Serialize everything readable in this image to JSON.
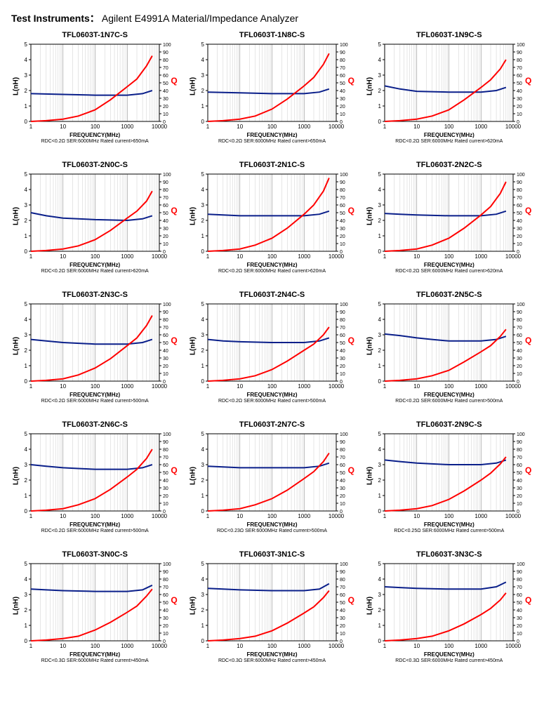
{
  "header": {
    "label": "Test Instruments：",
    "value": "Agilent E4991A Material/Impedance Analyzer"
  },
  "global": {
    "xlabel": "FREQUENCY(MHz)",
    "ylabel_left": "L(nH)",
    "ylabel_right": "Q",
    "x_scale": "log",
    "x_decades": [
      1,
      10,
      100,
      1000,
      10000
    ],
    "y_left": {
      "min": 0,
      "max": 5,
      "step": 1
    },
    "y_right": {
      "min": 0,
      "max": 100,
      "step": 10
    },
    "colors": {
      "background": "#ffffff",
      "axis": "#000000",
      "inductance_line": "#0a1f8a",
      "q_line": "#ff0000",
      "grid_minor": "#cccccc",
      "grid_major": "#888888",
      "q_marker": "#ff0000"
    },
    "line_width_L": 2.0,
    "line_width_Q": 2.0,
    "title_fontsize": 11,
    "label_fontsize": 8,
    "footnote_fontsize": 7
  },
  "panels": [
    {
      "title": "TFL0603T-1N7C-S",
      "footnote": "RDC<0.2Ω SER:6000MHz Rated current>650mA",
      "L_curve": [
        [
          1,
          1.8
        ],
        [
          10,
          1.75
        ],
        [
          100,
          1.7
        ],
        [
          1000,
          1.7
        ],
        [
          3000,
          1.8
        ],
        [
          6000,
          2.0
        ]
      ],
      "Q_curve": [
        [
          1,
          0
        ],
        [
          3,
          1
        ],
        [
          10,
          3
        ],
        [
          30,
          7
        ],
        [
          100,
          15
        ],
        [
          300,
          28
        ],
        [
          1000,
          45
        ],
        [
          2000,
          55
        ],
        [
          4000,
          72
        ],
        [
          6000,
          85
        ]
      ]
    },
    {
      "title": "TFL0603T-1N8C-S",
      "footnote": "RDC<0.2Ω SER:6000MHz Rated current>650mA",
      "L_curve": [
        [
          1,
          1.9
        ],
        [
          10,
          1.85
        ],
        [
          100,
          1.8
        ],
        [
          1000,
          1.8
        ],
        [
          3000,
          1.9
        ],
        [
          6000,
          2.1
        ]
      ],
      "Q_curve": [
        [
          1,
          0
        ],
        [
          3,
          1
        ],
        [
          10,
          3
        ],
        [
          30,
          7
        ],
        [
          100,
          16
        ],
        [
          300,
          29
        ],
        [
          1000,
          46
        ],
        [
          2000,
          57
        ],
        [
          4000,
          74
        ],
        [
          6000,
          88
        ]
      ]
    },
    {
      "title": "TFL0603T-1N9C-S",
      "footnote": "RDC<0.2Ω SER:6000MHz Rated current>620mA",
      "L_curve": [
        [
          1,
          2.3
        ],
        [
          3,
          2.1
        ],
        [
          10,
          1.95
        ],
        [
          100,
          1.9
        ],
        [
          1000,
          1.9
        ],
        [
          3000,
          2.0
        ],
        [
          6000,
          2.2
        ]
      ],
      "Q_curve": [
        [
          1,
          0
        ],
        [
          3,
          1
        ],
        [
          10,
          3
        ],
        [
          30,
          7
        ],
        [
          100,
          15
        ],
        [
          300,
          28
        ],
        [
          1000,
          44
        ],
        [
          2000,
          54
        ],
        [
          4000,
          68
        ],
        [
          6000,
          80
        ]
      ]
    },
    {
      "title": "TFL0603T-2N0C-S",
      "footnote": "RDC<0.2Ω SER:6000MHz Rated current>620mA",
      "L_curve": [
        [
          1,
          2.5
        ],
        [
          3,
          2.3
        ],
        [
          10,
          2.15
        ],
        [
          100,
          2.05
        ],
        [
          1000,
          2.0
        ],
        [
          3000,
          2.1
        ],
        [
          6000,
          2.3
        ]
      ],
      "Q_curve": [
        [
          1,
          0
        ],
        [
          3,
          1
        ],
        [
          10,
          3
        ],
        [
          30,
          7
        ],
        [
          100,
          15
        ],
        [
          300,
          27
        ],
        [
          1000,
          43
        ],
        [
          2000,
          52
        ],
        [
          4000,
          65
        ],
        [
          6000,
          78
        ]
      ]
    },
    {
      "title": "TFL0603T-2N1C-S",
      "footnote": "RDC<0.2Ω SER:6000MHz Rated current>620mA",
      "L_curve": [
        [
          1,
          2.4
        ],
        [
          3,
          2.35
        ],
        [
          10,
          2.3
        ],
        [
          100,
          2.3
        ],
        [
          1000,
          2.3
        ],
        [
          3000,
          2.4
        ],
        [
          6000,
          2.6
        ]
      ],
      "Q_curve": [
        [
          1,
          0
        ],
        [
          3,
          1
        ],
        [
          10,
          3
        ],
        [
          30,
          8
        ],
        [
          100,
          17
        ],
        [
          300,
          30
        ],
        [
          1000,
          48
        ],
        [
          2000,
          60
        ],
        [
          4000,
          78
        ],
        [
          6000,
          95
        ]
      ]
    },
    {
      "title": "TFL0603T-2N2C-S",
      "footnote": "RDC<0.2Ω SER:6000MHz Rated current>620mA",
      "L_curve": [
        [
          1,
          2.45
        ],
        [
          3,
          2.4
        ],
        [
          10,
          2.35
        ],
        [
          100,
          2.3
        ],
        [
          1000,
          2.3
        ],
        [
          3000,
          2.4
        ],
        [
          6000,
          2.6
        ]
      ],
      "Q_curve": [
        [
          1,
          0
        ],
        [
          3,
          1
        ],
        [
          10,
          3
        ],
        [
          30,
          8
        ],
        [
          100,
          17
        ],
        [
          300,
          30
        ],
        [
          1000,
          47
        ],
        [
          2000,
          58
        ],
        [
          4000,
          75
        ],
        [
          6000,
          90
        ]
      ]
    },
    {
      "title": "TFL0603T-2N3C-S",
      "footnote": "RDC<0.2Ω SER:6000MHz Rated current>500mA",
      "L_curve": [
        [
          1,
          2.7
        ],
        [
          3,
          2.6
        ],
        [
          10,
          2.5
        ],
        [
          100,
          2.4
        ],
        [
          1000,
          2.4
        ],
        [
          3000,
          2.5
        ],
        [
          6000,
          2.7
        ]
      ],
      "Q_curve": [
        [
          1,
          0
        ],
        [
          3,
          1
        ],
        [
          10,
          3
        ],
        [
          30,
          8
        ],
        [
          100,
          17
        ],
        [
          300,
          29
        ],
        [
          1000,
          46
        ],
        [
          2000,
          56
        ],
        [
          4000,
          72
        ],
        [
          6000,
          85
        ]
      ]
    },
    {
      "title": "TFL0603T-2N4C-S",
      "footnote": "RDC<0.2Ω SER:6000MHz Rated current>500mA",
      "L_curve": [
        [
          1,
          2.7
        ],
        [
          3,
          2.6
        ],
        [
          10,
          2.55
        ],
        [
          100,
          2.5
        ],
        [
          1000,
          2.5
        ],
        [
          3000,
          2.6
        ],
        [
          6000,
          2.8
        ]
      ],
      "Q_curve": [
        [
          1,
          0
        ],
        [
          3,
          1
        ],
        [
          10,
          3
        ],
        [
          30,
          7
        ],
        [
          100,
          15
        ],
        [
          300,
          26
        ],
        [
          1000,
          40
        ],
        [
          2000,
          48
        ],
        [
          4000,
          60
        ],
        [
          6000,
          70
        ]
      ]
    },
    {
      "title": "TFL0603T-2N5C-S",
      "footnote": "RDC<0.2Ω SER:6000MHz Rated current>500mA",
      "L_curve": [
        [
          1,
          3.05
        ],
        [
          3,
          2.95
        ],
        [
          10,
          2.8
        ],
        [
          30,
          2.7
        ],
        [
          100,
          2.6
        ],
        [
          1000,
          2.6
        ],
        [
          3000,
          2.7
        ],
        [
          6000,
          2.9
        ]
      ],
      "Q_curve": [
        [
          1,
          0
        ],
        [
          3,
          1
        ],
        [
          10,
          3
        ],
        [
          30,
          7
        ],
        [
          100,
          14
        ],
        [
          300,
          25
        ],
        [
          1000,
          38
        ],
        [
          2000,
          46
        ],
        [
          4000,
          58
        ],
        [
          6000,
          67
        ]
      ]
    },
    {
      "title": "TFL0603T-2N6C-S",
      "footnote": "RDC<0.2Ω SER:6000MHz Rated current>500mA",
      "L_curve": [
        [
          1,
          3.0
        ],
        [
          3,
          2.9
        ],
        [
          10,
          2.8
        ],
        [
          30,
          2.75
        ],
        [
          100,
          2.7
        ],
        [
          1000,
          2.7
        ],
        [
          3000,
          2.8
        ],
        [
          6000,
          3.0
        ]
      ],
      "Q_curve": [
        [
          1,
          0
        ],
        [
          3,
          1
        ],
        [
          10,
          3
        ],
        [
          30,
          8
        ],
        [
          100,
          16
        ],
        [
          300,
          28
        ],
        [
          1000,
          44
        ],
        [
          2000,
          54
        ],
        [
          4000,
          68
        ],
        [
          6000,
          80
        ]
      ]
    },
    {
      "title": "TFL0603T-2N7C-S",
      "footnote": "RDC<0.23Ω SER:6000MHz Rated current>500mA",
      "L_curve": [
        [
          1,
          2.9
        ],
        [
          3,
          2.85
        ],
        [
          10,
          2.8
        ],
        [
          100,
          2.8
        ],
        [
          1000,
          2.8
        ],
        [
          3000,
          2.9
        ],
        [
          6000,
          3.1
        ]
      ],
      "Q_curve": [
        [
          1,
          0
        ],
        [
          3,
          1
        ],
        [
          10,
          3
        ],
        [
          30,
          8
        ],
        [
          100,
          16
        ],
        [
          300,
          27
        ],
        [
          1000,
          42
        ],
        [
          2000,
          51
        ],
        [
          4000,
          64
        ],
        [
          6000,
          75
        ]
      ]
    },
    {
      "title": "TFL0603T-2N9C-S",
      "footnote": "RDC<0.25Ω SER:6000MHz Rated current>500mA",
      "L_curve": [
        [
          1,
          3.3
        ],
        [
          3,
          3.2
        ],
        [
          10,
          3.1
        ],
        [
          30,
          3.05
        ],
        [
          100,
          3.0
        ],
        [
          1000,
          3.0
        ],
        [
          3000,
          3.1
        ],
        [
          6000,
          3.3
        ]
      ],
      "Q_curve": [
        [
          1,
          0
        ],
        [
          3,
          1
        ],
        [
          10,
          3
        ],
        [
          30,
          7
        ],
        [
          100,
          15
        ],
        [
          300,
          26
        ],
        [
          1000,
          40
        ],
        [
          2000,
          49
        ],
        [
          4000,
          61
        ],
        [
          6000,
          70
        ]
      ]
    },
    {
      "title": "TFL0603T-3N0C-S",
      "footnote": "RDC<0.3Ω SER:6000MHz Rated current>450mA",
      "L_curve": [
        [
          1,
          3.35
        ],
        [
          3,
          3.3
        ],
        [
          10,
          3.25
        ],
        [
          100,
          3.2
        ],
        [
          1000,
          3.2
        ],
        [
          3000,
          3.3
        ],
        [
          6000,
          3.6
        ]
      ],
      "Q_curve": [
        [
          1,
          0
        ],
        [
          3,
          1
        ],
        [
          10,
          3
        ],
        [
          30,
          6
        ],
        [
          100,
          14
        ],
        [
          300,
          24
        ],
        [
          1000,
          37
        ],
        [
          2000,
          45
        ],
        [
          4000,
          58
        ],
        [
          6000,
          67
        ]
      ]
    },
    {
      "title": "TFL0603T-3N1C-S",
      "footnote": "RDC<0.3Ω SER:6000MHz Rated current>450mA",
      "L_curve": [
        [
          1,
          3.4
        ],
        [
          3,
          3.35
        ],
        [
          10,
          3.3
        ],
        [
          100,
          3.25
        ],
        [
          1000,
          3.25
        ],
        [
          3000,
          3.35
        ],
        [
          6000,
          3.7
        ]
      ],
      "Q_curve": [
        [
          1,
          0
        ],
        [
          3,
          1
        ],
        [
          10,
          3
        ],
        [
          30,
          6
        ],
        [
          100,
          13
        ],
        [
          300,
          23
        ],
        [
          1000,
          36
        ],
        [
          2000,
          44
        ],
        [
          4000,
          56
        ],
        [
          6000,
          65
        ]
      ]
    },
    {
      "title": "TFL0603T-3N3C-S",
      "footnote": "RDC<0.3Ω SER:6000MHz Rated current>450mA",
      "L_curve": [
        [
          1,
          3.5
        ],
        [
          3,
          3.45
        ],
        [
          10,
          3.4
        ],
        [
          100,
          3.35
        ],
        [
          1000,
          3.35
        ],
        [
          3000,
          3.5
        ],
        [
          6000,
          3.8
        ]
      ],
      "Q_curve": [
        [
          1,
          0
        ],
        [
          3,
          1
        ],
        [
          10,
          3
        ],
        [
          30,
          6
        ],
        [
          100,
          13
        ],
        [
          300,
          22
        ],
        [
          1000,
          34
        ],
        [
          2000,
          42
        ],
        [
          4000,
          53
        ],
        [
          6000,
          62
        ]
      ]
    }
  ]
}
